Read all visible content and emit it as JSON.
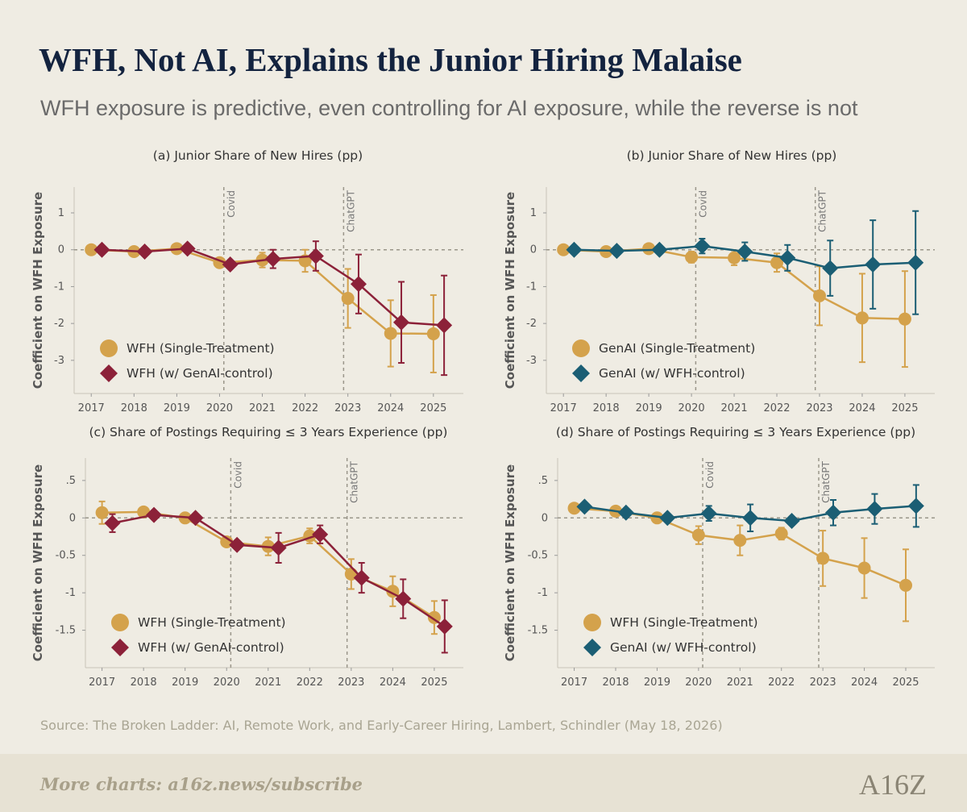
{
  "header": {
    "title": "WFH, Not AI, Explains the Junior Hiring Malaise",
    "subtitle": "WFH exposure is predictive, even controlling for AI exposure, while the reverse is not"
  },
  "chart_data": [
    {
      "type": "line",
      "title": "(a) Junior Share of New Hires (pp)",
      "y_label": "Coefficient on WFH Exposure",
      "xlim": [
        2016.6,
        2025.7
      ],
      "xticks": [
        2017,
        2018,
        2019,
        2020,
        2021,
        2022,
        2023,
        2024,
        2025
      ],
      "ylim": [
        -3.9,
        1.7
      ],
      "yticks": [
        1,
        0,
        -1,
        -2,
        -3
      ],
      "zero_line": true,
      "legend": "lower left",
      "vlines": [
        {
          "x": 2020.1,
          "label": "Covid"
        },
        {
          "x": 2022.9,
          "label": "ChatGPT"
        }
      ],
      "series": [
        {
          "name": "WFH (Single-Treatment)",
          "color": "#d4a24c",
          "marker": "circle",
          "x": [
            2017,
            2018,
            2019,
            2020,
            2021,
            2022,
            2023,
            2024,
            2025
          ],
          "values": [
            0,
            -0.05,
            0.03,
            -0.35,
            -0.28,
            -0.3,
            -1.32,
            -2.27,
            -2.28
          ],
          "errors": [
            0,
            0.05,
            0.05,
            0.1,
            0.2,
            0.3,
            0.8,
            0.9,
            1.05
          ]
        },
        {
          "name": "WFH (w/ GenAI-control)",
          "color": "#8c2139",
          "marker": "diamond",
          "x": [
            2017.25,
            2018.25,
            2019.25,
            2020.25,
            2021.25,
            2022.25,
            2023.25,
            2024.25,
            2025.25
          ],
          "values": [
            0,
            -0.05,
            0.03,
            -0.4,
            -0.25,
            -0.17,
            -0.93,
            -1.97,
            -2.05
          ],
          "errors": [
            0,
            0.05,
            0.05,
            0.1,
            0.25,
            0.4,
            0.8,
            1.1,
            1.35
          ]
        }
      ]
    },
    {
      "type": "line",
      "title": "(b) Junior Share of New Hires (pp)",
      "y_label": "Coefficient on WFH Exposure",
      "xlim": [
        2016.6,
        2025.7
      ],
      "xticks": [
        2017,
        2018,
        2019,
        2020,
        2021,
        2022,
        2023,
        2024,
        2025
      ],
      "ylim": [
        -3.9,
        1.7
      ],
      "yticks": [
        1,
        0,
        -1,
        -2,
        -3
      ],
      "zero_line": true,
      "legend": "lower left",
      "vlines": [
        {
          "x": 2020.1,
          "label": "Covid"
        },
        {
          "x": 2022.9,
          "label": "ChatGPT"
        }
      ],
      "series": [
        {
          "name": "GenAI (Single-Treatment)",
          "color": "#d4a24c",
          "marker": "circle",
          "x": [
            2017,
            2018,
            2019,
            2020,
            2021,
            2022,
            2023,
            2024,
            2025
          ],
          "values": [
            0,
            -0.05,
            0.03,
            -0.2,
            -0.22,
            -0.35,
            -1.25,
            -1.85,
            -1.88
          ],
          "errors": [
            0,
            0.05,
            0.05,
            0.15,
            0.2,
            0.25,
            0.8,
            1.2,
            1.3
          ]
        },
        {
          "name": "GenAI (w/ WFH-control)",
          "color": "#1b5e74",
          "marker": "diamond",
          "x": [
            2017.25,
            2018.25,
            2019.25,
            2020.25,
            2021.25,
            2022.25,
            2023.25,
            2024.25,
            2025.25
          ],
          "values": [
            0,
            -0.03,
            0,
            0.1,
            -0.05,
            -0.22,
            -0.5,
            -0.4,
            -0.35
          ],
          "errors": [
            0,
            0.05,
            0.05,
            0.2,
            0.25,
            0.35,
            0.75,
            1.2,
            1.4
          ]
        }
      ]
    },
    {
      "type": "line",
      "title": "(c) Share of Postings Requiring ≤ 3 Years Experience (pp)",
      "y_label": "Coefficient on WFH Exposure",
      "xlim": [
        2016.6,
        2025.7
      ],
      "xticks": [
        2017,
        2018,
        2019,
        2020,
        2021,
        2022,
        2023,
        2024,
        2025
      ],
      "ylim": [
        -2,
        0.8
      ],
      "yticks": [
        {
          "value": 0.5,
          "label": ".5"
        },
        0,
        -0.5,
        -1,
        -1.5
      ],
      "zero_line": true,
      "legend": "lower left",
      "vlines": [
        {
          "x": 2020.1,
          "label": "Covid"
        },
        {
          "x": 2022.9,
          "label": "ChatGPT"
        }
      ],
      "series": [
        {
          "name": "WFH (Single-Treatment)",
          "color": "#d4a24c",
          "marker": "circle",
          "x": [
            2017,
            2018,
            2019,
            2020,
            2021,
            2022,
            2023,
            2024,
            2025
          ],
          "values": [
            0.07,
            0.08,
            0,
            -0.32,
            -0.38,
            -0.24,
            -0.75,
            -0.98,
            -1.33
          ],
          "errors": [
            0.15,
            0.03,
            0.03,
            0.05,
            0.12,
            0.1,
            0.2,
            0.2,
            0.22
          ]
        },
        {
          "name": "WFH (w/ GenAI-control)",
          "color": "#8c2139",
          "marker": "diamond",
          "x": [
            2017.25,
            2018.25,
            2019.25,
            2020.25,
            2021.25,
            2022.25,
            2023.25,
            2024.25,
            2025.25
          ],
          "values": [
            -0.07,
            0.04,
            0,
            -0.36,
            -0.4,
            -0.22,
            -0.8,
            -1.08,
            -1.45
          ],
          "errors": [
            0.12,
            0.03,
            0.03,
            0.04,
            0.2,
            0.12,
            0.2,
            0.26,
            0.35
          ]
        }
      ]
    },
    {
      "type": "line",
      "title": "(d) Share of Postings Requiring ≤ 3 Years Experience (pp)",
      "y_label": "Coefficient on WFH Exposure",
      "xlim": [
        2016.6,
        2025.7
      ],
      "xticks": [
        2017,
        2018,
        2019,
        2020,
        2021,
        2022,
        2023,
        2024,
        2025
      ],
      "ylim": [
        -2,
        0.8
      ],
      "yticks": [
        {
          "value": 0.5,
          "label": ".5"
        },
        0,
        -0.5,
        -1,
        -1.5
      ],
      "zero_line": true,
      "legend": "lower left",
      "vlines": [
        {
          "x": 2020.1,
          "label": "Covid"
        },
        {
          "x": 2022.9,
          "label": "ChatGPT"
        }
      ],
      "series": [
        {
          "name": "WFH (Single-Treatment)",
          "color": "#d4a24c",
          "marker": "circle",
          "x": [
            2017,
            2018,
            2019,
            2020,
            2021,
            2022,
            2023,
            2024,
            2025
          ],
          "values": [
            0.13,
            0.09,
            0,
            -0.23,
            -0.3,
            -0.21,
            -0.54,
            -0.67,
            -0.9
          ],
          "errors": [
            0.03,
            0.03,
            0.03,
            0.12,
            0.2,
            0.08,
            0.37,
            0.4,
            0.48
          ]
        },
        {
          "name": "GenAI (w/ WFH-control)",
          "color": "#1b5e74",
          "marker": "diamond",
          "x": [
            2017.25,
            2018.25,
            2019.25,
            2020.25,
            2021.25,
            2022.25,
            2023.25,
            2024.25,
            2025.25
          ],
          "values": [
            0.15,
            0.07,
            0,
            0.06,
            0,
            -0.04,
            0.07,
            0.12,
            0.16
          ],
          "errors": [
            0.03,
            0.03,
            0.03,
            0.1,
            0.18,
            0.05,
            0.17,
            0.2,
            0.28
          ]
        }
      ]
    }
  ],
  "source": "Source: The Broken Ladder: AI, Remote Work, and Early-Career Hiring, Lambert, Schindler (May 18, 2026)",
  "footer": {
    "link": "More charts: a16z.news/subscribe",
    "logo": "A16Z"
  }
}
